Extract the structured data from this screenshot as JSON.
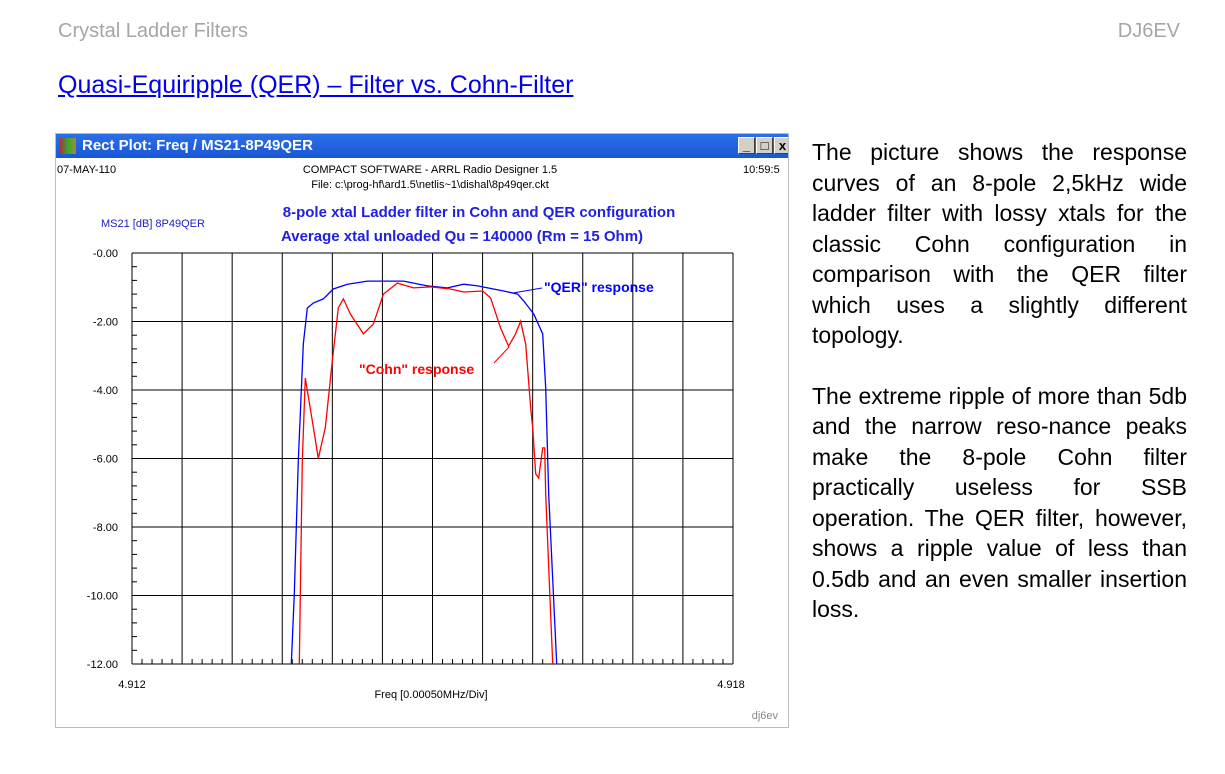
{
  "header": {
    "left": "Crystal Ladder Filters",
    "right": "DJ6EV"
  },
  "title": "Quasi-Equiripple (QER) – Filter vs. Cohn-Filter",
  "window": {
    "title": "Rect Plot: Freq / MS21-8P49QER",
    "buttons": {
      "minimize": "_",
      "maximize": "□",
      "close": "x"
    },
    "date": "07-MAY-110",
    "time": "10:59:5",
    "software": "COMPACT SOFTWARE - ARRL Radio Designer 1.5",
    "file": "File: c:\\prog-hf\\ard1.5\\netlis~1\\dishal\\8p49qer.ckt",
    "watermark": "dj6ev"
  },
  "body_text": [
    "The picture shows the response curves of an 8-pole 2,5kHz wide ladder filter with lossy xtals for the classic Cohn configuration in comparison with the QER filter which uses a slightly different topology.",
    "The extreme ripple of more than 5db and the narrow reso-nance peaks make the 8-pole Cohn filter practically useless for SSB operation. The QER filter, however, shows a ripple value of less than 0.5db and an even smaller insertion loss."
  ],
  "chart_data": {
    "type": "line",
    "title": "8-pole xtal Ladder filter in Cohn and QER configuration",
    "subtitle": "Average xtal unloaded Qu = 140000 (Rm = 15 Ohm)",
    "ylabel": "MS21 [dB] 8P49QER",
    "xlabel": "Freq [0.00050MHz/Div]",
    "xlim": [
      4.912,
      4.918
    ],
    "ylim": [
      -12,
      0
    ],
    "xticks": [
      "4.912",
      "4.918"
    ],
    "yticks": [
      "-0.00",
      "-2.00",
      "-4.00",
      "-6.00",
      "-8.00",
      "-10.00",
      "-12.00"
    ],
    "grid": true,
    "colors": {
      "qer": "#0000ff",
      "cohn": "#ff0000",
      "annotation_qer": "#0000ff",
      "annotation_cohn": "#ff0000"
    },
    "annotations": [
      "\"QER\"  response",
      "\"Cohn\" response"
    ],
    "series": [
      {
        "name": "\"QER\"  response",
        "color": "#0000ff",
        "x": [
          4.91359,
          4.91362,
          4.91366,
          4.91371,
          4.91375,
          4.91381,
          4.91391,
          4.91401,
          4.91415,
          4.91435,
          4.91471,
          4.91495,
          4.91515,
          4.91531,
          4.91545,
          4.91571,
          4.91585,
          4.91591,
          4.91601,
          4.9161,
          4.91613,
          4.91616,
          4.91624
        ],
        "y": [
          -12,
          -9.96,
          -6.07,
          -2.66,
          -1.61,
          -1.46,
          -1.34,
          -1.05,
          -0.91,
          -0.82,
          -0.82,
          -0.96,
          -1.02,
          -0.91,
          -0.96,
          -1.11,
          -1.2,
          -1.4,
          -1.78,
          -2.36,
          -3.94,
          -7.04,
          -12
        ]
      },
      {
        "name": "\"Cohn\" response",
        "color": "#ff0000",
        "x": [
          4.91367,
          4.9137,
          4.91373,
          4.9138,
          4.91386,
          4.91393,
          4.914,
          4.91406,
          4.91411,
          4.91418,
          4.91431,
          4.91441,
          4.91451,
          4.91465,
          4.91481,
          4.91498,
          4.91518,
          4.91531,
          4.9155,
          4.91558,
          4.91568,
          4.91576,
          4.91583,
          4.91588,
          4.91593,
          4.91598,
          4.916,
          4.91603,
          4.91606,
          4.9161,
          4.91612,
          4.91613,
          4.9162
        ],
        "y": [
          -12,
          -6.07,
          -3.65,
          -4.9,
          -6.0,
          -5.1,
          -3.15,
          -1.6,
          -1.34,
          -1.78,
          -2.36,
          -2.07,
          -1.2,
          -0.88,
          -1.02,
          -0.99,
          -1.05,
          -1.14,
          -1.11,
          -1.31,
          -2.19,
          -2.72,
          -2.36,
          -1.99,
          -2.66,
          -4.53,
          -5.1,
          -6.45,
          -6.57,
          -5.69,
          -5.69,
          -7.04,
          -12
        ]
      }
    ]
  }
}
